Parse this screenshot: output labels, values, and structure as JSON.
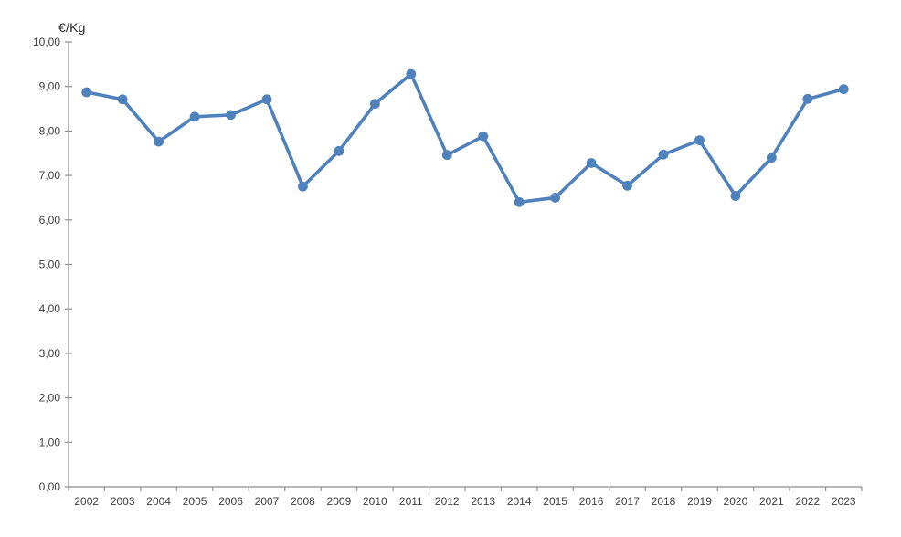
{
  "chart_data": {
    "type": "line",
    "title": "€/Kg",
    "ylabel": "€/Kg",
    "xlabel": "",
    "categories": [
      "2002",
      "2003",
      "2004",
      "2005",
      "2006",
      "2007",
      "2008",
      "2009",
      "2010",
      "2011",
      "2012",
      "2013",
      "2014",
      "2015",
      "2016",
      "2017",
      "2018",
      "2019",
      "2020",
      "2021",
      "2022",
      "2023"
    ],
    "values": [
      8.87,
      8.71,
      7.76,
      8.32,
      8.36,
      8.71,
      6.75,
      7.55,
      8.61,
      9.28,
      7.46,
      7.88,
      6.4,
      6.5,
      7.28,
      6.77,
      7.47,
      7.79,
      6.54,
      7.4,
      8.72,
      8.94
    ],
    "ylim": [
      0,
      10
    ],
    "y_tick_step": 1,
    "y_tick_labels": [
      "0,00",
      "1,00",
      "2,00",
      "3,00",
      "4,00",
      "5,00",
      "6,00",
      "7,00",
      "8,00",
      "9,00",
      "10,00"
    ],
    "grid": false,
    "legend": "none",
    "colors": {
      "series": "#4f81bd",
      "axis": "#8e8e8e",
      "labels": "#3f3f3f",
      "background": "#ffffff"
    }
  }
}
